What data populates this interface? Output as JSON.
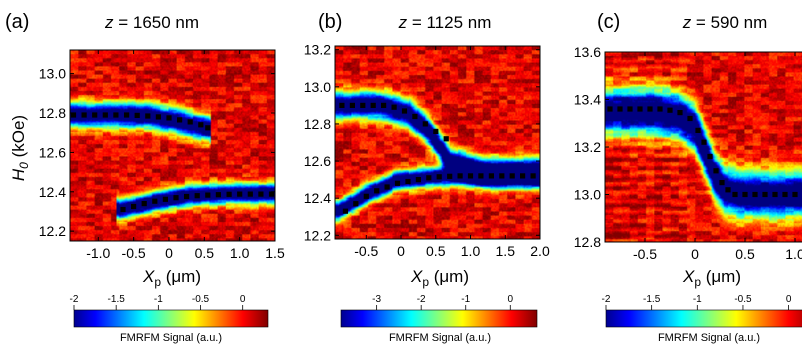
{
  "figure": {
    "colorbar_caption": "FMRFM Signal (a.u.)"
  },
  "chart_data": [
    {
      "type": "heatmap",
      "panel_label": "(a)",
      "title": "z = 1650 nm",
      "title_var": "z",
      "title_rest": " = 1650 nm",
      "xlabel_var": "X",
      "xlabel_sub": "p",
      "xlabel_unit": " (μm)",
      "ylabel_var": "H",
      "ylabel_sub": "0",
      "ylabel_unit": " (kOe)",
      "xlim": [
        -1.4,
        1.5
      ],
      "ylim": [
        12.15,
        13.12
      ],
      "xticks": [
        "-1.0",
        "-0.5",
        "0",
        "0.5",
        "1.0",
        "1.5"
      ],
      "xtick_values": [
        -1.0,
        -0.5,
        0,
        0.5,
        1.0,
        1.5
      ],
      "yticks": [
        "12.2",
        "12.4",
        "12.6",
        "12.8",
        "13.0"
      ],
      "ytick_values": [
        12.2,
        12.4,
        12.6,
        12.8,
        13.0
      ],
      "colorbar": {
        "range": [
          -2,
          0.3
        ],
        "ticks": [
          "-2",
          "-1.5",
          "-1",
          "-0.5",
          "0"
        ],
        "tick_values": [
          -2,
          -1.5,
          -1,
          -0.5,
          0
        ]
      },
      "modes": [
        {
          "x": [
            -1.4,
            -0.8,
            -0.3,
            0.1,
            0.55
          ],
          "y": [
            12.79,
            12.79,
            12.785,
            12.76,
            12.72
          ],
          "width": 0.06
        },
        {
          "x": [
            -0.7,
            -0.2,
            0.3,
            0.8,
            1.5
          ],
          "y": [
            12.31,
            12.35,
            12.38,
            12.39,
            12.39
          ],
          "width": 0.05
        }
      ],
      "markers": [
        {
          "x": [
            -1.35,
            -1.2,
            -1.05,
            -0.9,
            -0.75,
            -0.6,
            -0.45,
            -0.3,
            -0.15,
            0.0,
            0.15,
            0.3,
            0.45,
            0.55
          ],
          "y": [
            12.79,
            12.79,
            12.79,
            12.79,
            12.79,
            12.79,
            12.788,
            12.785,
            12.78,
            12.775,
            12.765,
            12.755,
            12.74,
            12.725
          ]
        },
        {
          "x": [
            -0.65,
            -0.5,
            -0.35,
            -0.2,
            -0.05,
            0.1,
            0.25,
            0.4,
            0.55,
            0.7,
            0.85,
            1.0,
            1.15,
            1.3,
            1.45
          ],
          "y": [
            12.31,
            12.325,
            12.34,
            12.352,
            12.362,
            12.37,
            12.376,
            12.38,
            12.383,
            12.385,
            12.387,
            12.388,
            12.388,
            12.388,
            12.388
          ]
        }
      ]
    },
    {
      "type": "heatmap",
      "panel_label": "(b)",
      "title": "z = 1125 nm",
      "title_var": "z",
      "title_rest": " = 1125 nm",
      "xlabel_var": "X",
      "xlabel_sub": "p",
      "xlabel_unit": " (μm)",
      "xlim": [
        -0.95,
        2.0
      ],
      "ylim": [
        12.18,
        13.22
      ],
      "xticks": [
        "-0.5",
        "0",
        "0.5",
        "1.0",
        "1.5",
        "2.0"
      ],
      "xtick_values": [
        -0.5,
        0,
        0.5,
        1.0,
        1.5,
        2.0
      ],
      "yticks": [
        "12.2",
        "12.4",
        "12.6",
        "12.8",
        "13.0",
        "13.2"
      ],
      "ytick_values": [
        12.2,
        12.4,
        12.6,
        12.8,
        13.0,
        13.2
      ],
      "colorbar": {
        "range": [
          -3.8,
          0.6
        ],
        "ticks": [
          "-3",
          "-2",
          "-1",
          "0"
        ],
        "tick_values": [
          -3,
          -2,
          -1,
          0
        ]
      },
      "modes": [
        {
          "x": [
            -0.95,
            -0.3,
            0.1,
            0.4,
            0.7,
            1.2,
            2.0
          ],
          "y": [
            12.9,
            12.9,
            12.86,
            12.76,
            12.6,
            12.54,
            12.54
          ],
          "width": 0.07
        },
        {
          "x": [
            -0.9,
            -0.5,
            -0.1,
            0.3,
            0.7,
            1.2,
            2.0
          ],
          "y": [
            12.33,
            12.42,
            12.49,
            12.51,
            12.52,
            12.52,
            12.52
          ],
          "width": 0.05
        }
      ],
      "markers": [
        {
          "x": [
            -0.85,
            -0.7,
            -0.55,
            -0.4,
            -0.25,
            -0.1,
            0.05,
            0.2,
            0.35,
            0.5,
            0.65
          ],
          "y": [
            12.9,
            12.9,
            12.9,
            12.9,
            12.9,
            12.89,
            12.87,
            12.84,
            12.8,
            12.76,
            12.72
          ]
        },
        {
          "x": [
            -0.8,
            -0.65,
            -0.5,
            -0.35,
            -0.2,
            -0.05,
            0.1,
            0.25,
            0.4,
            0.55,
            0.7,
            0.85,
            1.0,
            1.15,
            1.3,
            1.45,
            1.6,
            1.75,
            1.9
          ],
          "y": [
            12.33,
            12.37,
            12.41,
            12.44,
            12.46,
            12.48,
            12.49,
            12.5,
            12.51,
            12.515,
            12.518,
            12.52,
            12.52,
            12.52,
            12.52,
            12.52,
            12.52,
            12.52,
            12.52
          ]
        }
      ]
    },
    {
      "type": "heatmap",
      "panel_label": "(c)",
      "title": "z = 590 nm",
      "title_var": "z",
      "title_rest": " = 590 nm",
      "xlabel_var": "X",
      "xlabel_sub": "p",
      "xlabel_unit": " (μm)",
      "xlim": [
        -0.9,
        1.15
      ],
      "ylim": [
        12.8,
        13.6
      ],
      "xticks": [
        "-0.5",
        "0",
        "0.5",
        "1.0"
      ],
      "xtick_values": [
        -0.5,
        0,
        0.5,
        1.0
      ],
      "yticks": [
        "12.8",
        "13.0",
        "13.2",
        "13.4",
        "13.6"
      ],
      "ytick_values": [
        12.8,
        13.0,
        13.2,
        13.4,
        13.6
      ],
      "colorbar": {
        "range": [
          -2,
          0.3
        ],
        "ticks": [
          "-2",
          "-1.5",
          "-1",
          "-0.5",
          "0"
        ],
        "tick_values": [
          -2,
          -1.5,
          -1,
          -0.5,
          0
        ]
      },
      "modes": [
        {
          "x": [
            -0.9,
            -0.4,
            -0.15,
            0.0,
            0.1,
            0.2,
            0.3,
            0.45,
            1.15
          ],
          "y": [
            13.35,
            13.35,
            13.33,
            13.28,
            13.18,
            13.08,
            13.02,
            13.0,
            13.0
          ],
          "width": 0.09
        }
      ],
      "markers": [
        {
          "x": [
            -0.85,
            -0.75,
            -0.65,
            -0.55,
            -0.45,
            -0.35,
            -0.25,
            -0.15,
            -0.05,
            0.03,
            0.09,
            0.15,
            0.21,
            0.27,
            0.33,
            0.4,
            0.5,
            0.6,
            0.7,
            0.8,
            0.9,
            1.0,
            1.1
          ],
          "y": [
            13.36,
            13.36,
            13.36,
            13.36,
            13.36,
            13.36,
            13.355,
            13.345,
            13.32,
            13.27,
            13.22,
            13.16,
            13.1,
            13.05,
            13.02,
            13.0,
            13.0,
            13.0,
            13.0,
            13.0,
            13.0,
            13.0,
            13.0
          ]
        }
      ]
    }
  ]
}
